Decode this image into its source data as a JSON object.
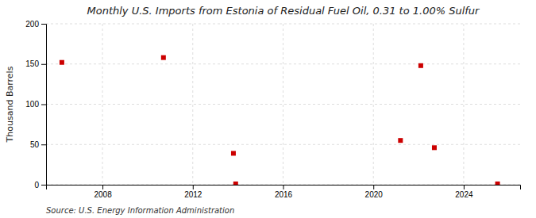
{
  "chart_data": {
    "type": "scatter",
    "title": "Monthly U.S. Imports from Estonia of Residual Fuel Oil, 0.31 to 1.00% Sulfur",
    "ylabel": "Thousand Barrels",
    "source": "Source: U.S. Energy Information Administration",
    "x": [
      2006.2,
      2010.7,
      2013.8,
      2013.9,
      2021.2,
      2022.1,
      2022.7,
      2025.5
    ],
    "values": [
      152,
      158,
      39,
      1,
      55,
      148,
      46,
      1
    ],
    "color": "#cc0000",
    "marker": "square",
    "xlim": [
      2005.5,
      2026.5
    ],
    "ylim": [
      0,
      200
    ],
    "xticks": [
      2008,
      2012,
      2016,
      2020,
      2024
    ],
    "yticks": [
      0,
      50,
      100,
      150,
      200
    ],
    "grid": true
  }
}
